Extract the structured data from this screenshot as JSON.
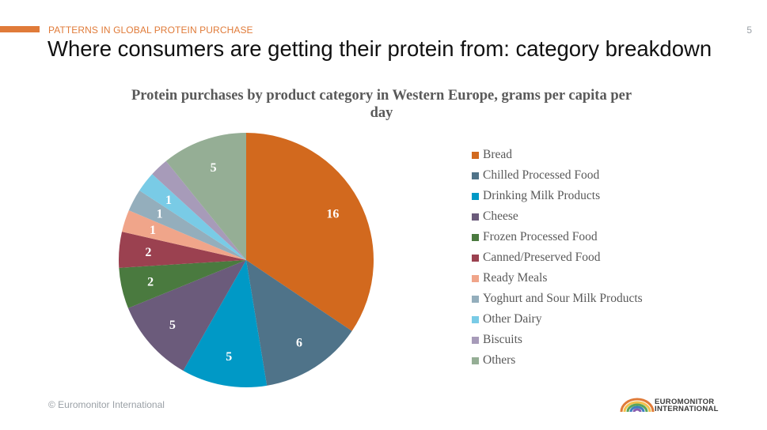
{
  "colors": {
    "accent": "#e07b39",
    "series": [
      "#d2691e",
      "#4f7389",
      "#0099c6",
      "#6b5b7b",
      "#4a7a3f",
      "#9b4150",
      "#f0a58a",
      "#94aebc",
      "#79cbe6",
      "#a79bb9",
      "#95ae95"
    ]
  },
  "header": {
    "kicker": "PATTERNS IN GLOBAL PROTEIN PURCHASE",
    "page_number": "5",
    "title": "Where consumers are getting their protein from: category breakdown"
  },
  "footer": {
    "copyright": "© Euromonitor International",
    "logo_text_line1": "EUROMONITOR",
    "logo_text_line2": "INTERNATIONAL"
  },
  "chart_data": {
    "type": "pie",
    "title": "Protein purchases by product category in Western Europe, grams per capita per day",
    "categories": [
      "Bread",
      "Chilled Processed Food",
      "Drinking Milk Products",
      "Cheese",
      "Frozen Processed Food",
      "Canned/Preserved Food",
      "Ready Meals",
      "Yoghurt and Sour Milk Products",
      "Other Dairy",
      "Biscuits",
      "Others"
    ],
    "values": [
      15.9,
      6.0,
      5.0,
      4.9,
      2.4,
      2.1,
      1.3,
      1.3,
      1.2,
      1.1,
      5.0
    ],
    "data_labels": [
      "16",
      "6",
      "5",
      "5",
      "2",
      "2",
      "1",
      "1",
      "1",
      "",
      "5"
    ],
    "legend_position": "right"
  }
}
